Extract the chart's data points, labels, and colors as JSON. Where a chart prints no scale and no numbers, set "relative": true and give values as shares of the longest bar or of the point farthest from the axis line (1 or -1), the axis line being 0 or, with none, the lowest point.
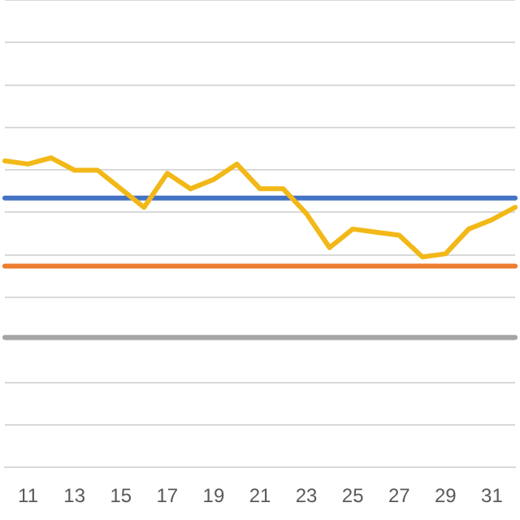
{
  "chart_data": {
    "type": "line",
    "relative": true,
    "grid": "y",
    "legend": false,
    "marker": "none",
    "line_style": "solid",
    "categories": [
      null,
      "11",
      null,
      "13",
      null,
      "15",
      null,
      "17",
      null,
      "19",
      null,
      "21",
      null,
      "23",
      null,
      "25",
      null,
      "27",
      null,
      "29",
      null,
      "31",
      null
    ],
    "series": [
      {
        "color": "#f2b817",
        "values": [
          0.99,
          0.98,
          1.0,
          0.96,
          0.96,
          0.9,
          0.84,
          0.95,
          0.9,
          0.93,
          0.98,
          0.9,
          0.9,
          0.82,
          0.71,
          0.77,
          0.76,
          0.75,
          0.68,
          0.69,
          0.77,
          0.8,
          0.84
        ]
      },
      {
        "color": "#4472c4",
        "values": [
          0.87,
          0.87,
          0.87,
          0.87,
          0.87,
          0.87,
          0.87,
          0.87,
          0.87,
          0.87,
          0.87,
          0.87,
          0.87,
          0.87,
          0.87,
          0.87,
          0.87,
          0.87,
          0.87,
          0.87,
          0.87,
          0.87,
          0.87
        ]
      },
      {
        "color": "#ed7d31",
        "values": [
          0.65,
          0.65,
          0.65,
          0.65,
          0.65,
          0.65,
          0.65,
          0.65,
          0.65,
          0.65,
          0.65,
          0.65,
          0.65,
          0.65,
          0.65,
          0.65,
          0.65,
          0.65,
          0.65,
          0.65,
          0.65,
          0.65,
          0.65
        ]
      },
      {
        "color": "#a5a5a5",
        "values": [
          0.42,
          0.42,
          0.42,
          0.42,
          0.42,
          0.42,
          0.42,
          0.42,
          0.42,
          0.42,
          0.42,
          0.42,
          0.42,
          0.42,
          0.42,
          0.42,
          0.42,
          0.42,
          0.42,
          0.42,
          0.42,
          0.42,
          0.42
        ]
      }
    ]
  }
}
